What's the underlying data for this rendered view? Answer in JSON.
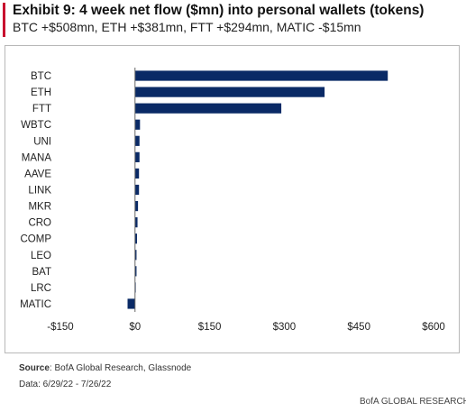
{
  "header": {
    "title": "Exhibit 9: 4 week net flow ($mn) into personal wallets (tokens)",
    "subtitle": "BTC +$508mn, ETH +$381mn, FTT +$294mn, MATIC -$15mn"
  },
  "footer": {
    "source_label": "Source",
    "source_text": ": BofA Global Research, Glassnode",
    "date_text": "Data: 6/29/22 - 7/26/22",
    "brand": "BofA GLOBAL RESEARCH"
  },
  "colors": {
    "bar": "#0a2a66",
    "accent": "#c8102e",
    "axis": "#666666"
  },
  "chart_data": {
    "type": "bar",
    "orientation": "horizontal",
    "title": "",
    "xlabel": "",
    "ylabel": "",
    "categories": [
      "BTC",
      "ETH",
      "FTT",
      "WBTC",
      "UNI",
      "MANA",
      "AAVE",
      "LINK",
      "MKR",
      "CRO",
      "COMP",
      "LEO",
      "BAT",
      "LRC",
      "MATIC"
    ],
    "values": [
      508,
      381,
      294,
      10,
      9,
      9,
      8,
      8,
      6,
      5,
      4,
      3,
      3,
      1,
      -15
    ],
    "xlim": [
      -150,
      600
    ],
    "xticks": [
      -150,
      0,
      150,
      300,
      450,
      600
    ],
    "xtick_labels": [
      "-$150",
      "$0",
      "$150",
      "$300",
      "$450",
      "$600"
    ],
    "grid": false,
    "legend": "none"
  }
}
